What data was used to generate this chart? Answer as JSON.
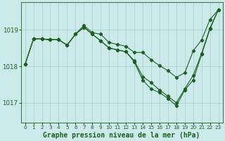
{
  "bg_color": "#cceaea",
  "grid_color": "#aacccc",
  "line_color": "#1a6020",
  "x_ticks": [
    0,
    1,
    2,
    3,
    4,
    5,
    6,
    7,
    8,
    9,
    10,
    11,
    12,
    13,
    14,
    15,
    16,
    17,
    18,
    19,
    20,
    21,
    22,
    23
  ],
  "y_ticks": [
    1017,
    1018,
    1019
  ],
  "ylim": [
    1016.45,
    1019.75
  ],
  "xlim": [
    -0.5,
    23.5
  ],
  "lines": [
    [
      1018.05,
      1018.75,
      1018.75,
      1018.73,
      1018.73,
      1018.58,
      1018.88,
      1019.12,
      1018.92,
      1018.88,
      1018.65,
      1018.6,
      1018.55,
      1018.38,
      1018.38,
      1018.18,
      1018.02,
      1017.88,
      1017.7,
      1017.82,
      1018.42,
      1018.72,
      1019.28,
      1019.55
    ],
    [
      1018.05,
      1018.75,
      1018.75,
      1018.73,
      1018.73,
      1018.58,
      1018.88,
      1019.07,
      1018.88,
      1018.7,
      1018.5,
      1018.45,
      1018.4,
      1018.15,
      1017.72,
      1017.55,
      1017.35,
      1017.18,
      1017.0,
      1017.38,
      1017.75,
      1018.35,
      1019.05,
      1019.55
    ],
    [
      1018.05,
      1018.75,
      1018.75,
      1018.73,
      1018.73,
      1018.58,
      1018.88,
      1019.07,
      1018.88,
      1018.7,
      1018.5,
      1018.45,
      1018.4,
      1018.12,
      1017.62,
      1017.38,
      1017.28,
      1017.12,
      1016.92,
      1017.35,
      1017.62,
      1018.32,
      1019.02,
      1019.55
    ]
  ],
  "title": "Graphe pression niveau de la mer (hPa)",
  "title_fontsize": 7.0,
  "xtick_fontsize": 5.2,
  "ytick_fontsize": 6.2,
  "markersize": 2.2,
  "linewidth": 0.8
}
